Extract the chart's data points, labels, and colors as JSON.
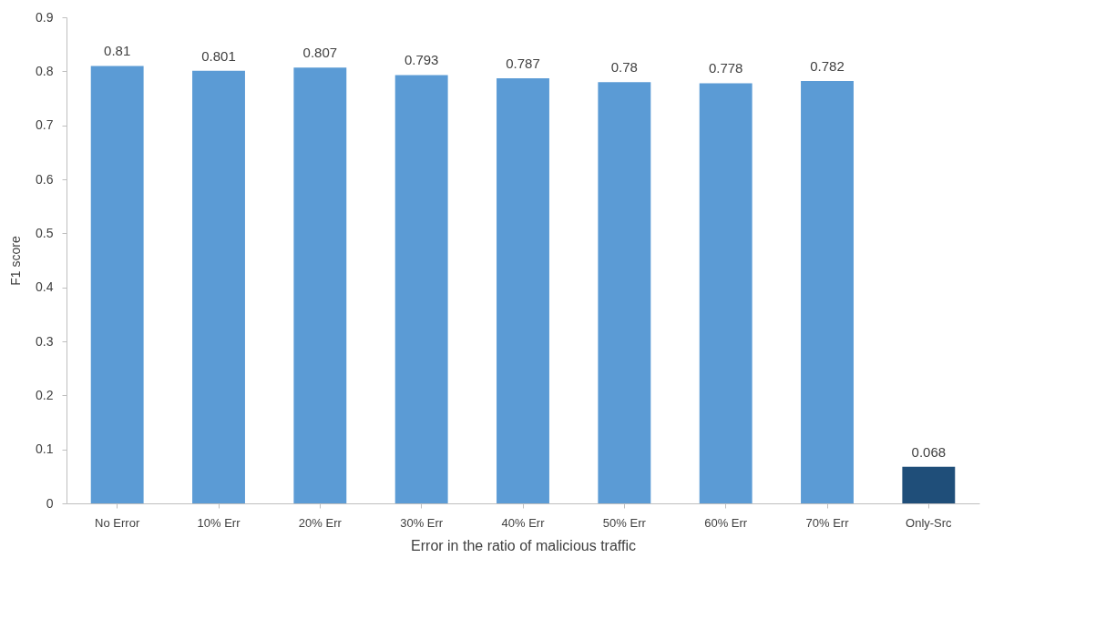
{
  "chart_data": {
    "type": "bar",
    "xlabel": "Error in the ratio of malicious traffic",
    "ylabel": "F1 score",
    "categories": [
      "No Error",
      "10% Err",
      "20% Err",
      "30% Err",
      "40% Err",
      "50% Err",
      "60% Err",
      "70% Err",
      "Only-Src"
    ],
    "values": [
      0.81,
      0.801,
      0.807,
      0.793,
      0.787,
      0.78,
      0.778,
      0.782,
      0.068
    ],
    "colors": [
      "#5b9bd5",
      "#5b9bd5",
      "#5b9bd5",
      "#5b9bd5",
      "#5b9bd5",
      "#5b9bd5",
      "#5b9bd5",
      "#5b9bd5",
      "#1f4e79"
    ],
    "ylim": [
      0,
      0.9
    ],
    "yticks": [
      0,
      0.1,
      0.2,
      0.3,
      0.4,
      0.5,
      0.6,
      0.7,
      0.8,
      0.9
    ],
    "grid": false,
    "data_labels": true
  }
}
